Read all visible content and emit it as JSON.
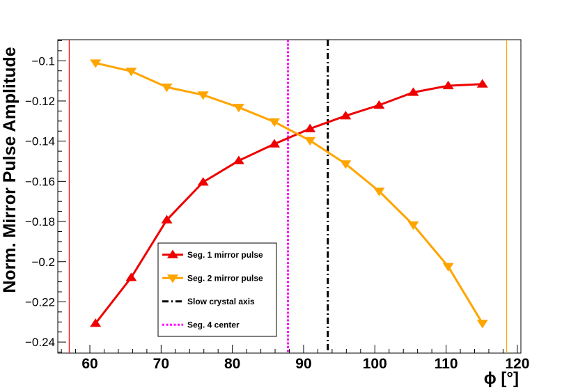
{
  "chart_data": {
    "type": "line",
    "xlabel": "ϕ [°]",
    "ylabel": "Norm. Mirror Pulse Amplitude",
    "xlim": [
      55.5,
      120.5
    ],
    "ylim": [
      -0.2455,
      -0.0895
    ],
    "xticks": [
      60,
      70,
      80,
      90,
      100,
      110,
      120
    ],
    "yticks": [
      -0.24,
      -0.22,
      -0.2,
      -0.18,
      -0.16,
      -0.14,
      -0.12,
      -0.1
    ],
    "ytick_labels": [
      "−0.24",
      "−0.22",
      "−0.2",
      "−0.18",
      "−0.16",
      "−0.14",
      "−0.12",
      "−0.1"
    ],
    "series": [
      {
        "name": "Seg. 1 mirror pulse",
        "color": "#ee0000",
        "marker": "triangle-up",
        "x": [
          60.8,
          65.8,
          70.8,
          75.9,
          80.9,
          85.9,
          90.9,
          95.9,
          100.6,
          105.4,
          110.3,
          115.1
        ],
        "y": [
          -0.2307,
          -0.2079,
          -0.1792,
          -0.1604,
          -0.1497,
          -0.1414,
          -0.1338,
          -0.1274,
          -0.1221,
          -0.1157,
          -0.1124,
          -0.1116
        ]
      },
      {
        "name": "Seg. 2 mirror pulse",
        "color": "#ffa500",
        "marker": "triangle-down",
        "x": [
          60.8,
          65.8,
          70.8,
          75.9,
          80.9,
          85.9,
          90.9,
          95.9,
          100.6,
          105.4,
          110.3,
          115.1
        ],
        "y": [
          -0.1011,
          -0.1052,
          -0.1131,
          -0.117,
          -0.1232,
          -0.1304,
          -0.1397,
          -0.1513,
          -0.1649,
          -0.1817,
          -0.2024,
          -0.2307
        ]
      }
    ],
    "reference_lines": [
      {
        "name": "Slow crystal axis",
        "x": 93.4,
        "color": "#000000",
        "style": "dashdot"
      },
      {
        "name": "Seg. 4 center",
        "x": 87.8,
        "color": "#ff00ff",
        "style": "dotted"
      },
      {
        "name": "",
        "x": 57.1,
        "color": "#ff0000",
        "style": "solid"
      },
      {
        "name": "",
        "x": 118.5,
        "color": "#ffa500",
        "style": "solid"
      }
    ],
    "legend": {
      "position": "bottom-left",
      "entries": [
        "Seg. 1 mirror pulse",
        "Seg. 2 mirror pulse",
        "Slow crystal axis",
        "Seg. 4 center"
      ]
    }
  }
}
